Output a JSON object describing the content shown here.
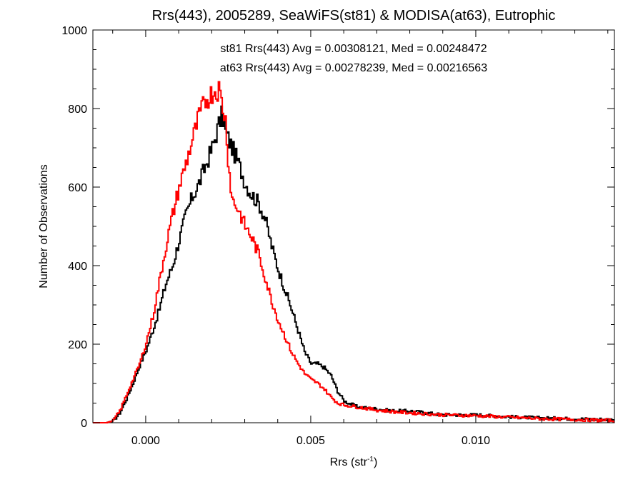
{
  "chart_data": {
    "type": "line",
    "style": "histogram-step",
    "title": "Rrs(443), 2005289, SeaWiFS(st81) & MODISA(at63), Eutrophic",
    "xlabel_base": "Rrs (str",
    "xlabel_sup": "-1",
    "xlabel_close": ")",
    "ylabel": "Number of Observations",
    "xlim": [
      -0.0016,
      0.0142
    ],
    "ylim": [
      0,
      1000
    ],
    "x_ticks": [
      0.0,
      0.005,
      0.01
    ],
    "x_tick_labels": [
      "0.000",
      "0.005",
      "0.010"
    ],
    "y_ticks": [
      0,
      200,
      400,
      600,
      800,
      1000
    ],
    "y_tick_labels": [
      "0",
      "200",
      "400",
      "600",
      "800",
      "1000"
    ],
    "grid": false,
    "series": [
      {
        "name": "st81",
        "color": "#000000",
        "annotation": "st81 Rrs(443) Avg = 0.00308121, Med = 0.00248472",
        "points": [
          [
            -0.0016,
            0
          ],
          [
            -0.0012,
            0
          ],
          [
            -0.001,
            5
          ],
          [
            -0.0008,
            25
          ],
          [
            -0.0006,
            60
          ],
          [
            -0.0004,
            100
          ],
          [
            -0.0002,
            145
          ],
          [
            0.0,
            185
          ],
          [
            0.0002,
            235
          ],
          [
            0.0004,
            290
          ],
          [
            0.0006,
            355
          ],
          [
            0.0008,
            400
          ],
          [
            0.001,
            465
          ],
          [
            0.0012,
            530
          ],
          [
            0.0014,
            575
          ],
          [
            0.0016,
            610
          ],
          [
            0.0018,
            655
          ],
          [
            0.002,
            700
          ],
          [
            0.0022,
            760
          ],
          [
            0.0023,
            785
          ],
          [
            0.0024,
            740
          ],
          [
            0.0026,
            700
          ],
          [
            0.0028,
            660
          ],
          [
            0.003,
            610
          ],
          [
            0.0032,
            580
          ],
          [
            0.0034,
            560
          ],
          [
            0.0036,
            520
          ],
          [
            0.0038,
            450
          ],
          [
            0.004,
            390
          ],
          [
            0.0042,
            340
          ],
          [
            0.0044,
            290
          ],
          [
            0.0046,
            235
          ],
          [
            0.0048,
            180
          ],
          [
            0.005,
            150
          ],
          [
            0.0052,
            150
          ],
          [
            0.0054,
            140
          ],
          [
            0.0056,
            120
          ],
          [
            0.0058,
            80
          ],
          [
            0.006,
            55
          ],
          [
            0.0064,
            40
          ],
          [
            0.007,
            35
          ],
          [
            0.0075,
            30
          ],
          [
            0.008,
            30
          ],
          [
            0.009,
            20
          ],
          [
            0.01,
            20
          ],
          [
            0.011,
            15
          ],
          [
            0.012,
            12
          ],
          [
            0.013,
            10
          ],
          [
            0.0142,
            8
          ]
        ]
      },
      {
        "name": "at63",
        "color": "#ff0000",
        "annotation": "at63 Rrs(443) Avg = 0.00278239, Med = 0.00216563",
        "points": [
          [
            -0.0016,
            0
          ],
          [
            -0.0012,
            0
          ],
          [
            -0.001,
            5
          ],
          [
            -0.0008,
            30
          ],
          [
            -0.0006,
            70
          ],
          [
            -0.0004,
            110
          ],
          [
            -0.0002,
            150
          ],
          [
            0.0,
            205
          ],
          [
            0.0002,
            270
          ],
          [
            0.0004,
            360
          ],
          [
            0.0006,
            450
          ],
          [
            0.0008,
            530
          ],
          [
            0.001,
            600
          ],
          [
            0.0012,
            660
          ],
          [
            0.0014,
            720
          ],
          [
            0.0016,
            780
          ],
          [
            0.0018,
            820
          ],
          [
            0.002,
            840
          ],
          [
            0.0022,
            850
          ],
          [
            0.0024,
            770
          ],
          [
            0.0025,
            650
          ],
          [
            0.0026,
            570
          ],
          [
            0.0028,
            540
          ],
          [
            0.003,
            500
          ],
          [
            0.0032,
            470
          ],
          [
            0.0034,
            430
          ],
          [
            0.0036,
            370
          ],
          [
            0.0038,
            310
          ],
          [
            0.004,
            260
          ],
          [
            0.0042,
            220
          ],
          [
            0.0044,
            180
          ],
          [
            0.0046,
            150
          ],
          [
            0.0048,
            125
          ],
          [
            0.005,
            110
          ],
          [
            0.0052,
            100
          ],
          [
            0.0054,
            85
          ],
          [
            0.0056,
            65
          ],
          [
            0.0058,
            50
          ],
          [
            0.006,
            45
          ],
          [
            0.0064,
            40
          ],
          [
            0.007,
            32
          ],
          [
            0.0075,
            28
          ],
          [
            0.008,
            25
          ],
          [
            0.009,
            20
          ],
          [
            0.01,
            18
          ],
          [
            0.011,
            14
          ],
          [
            0.012,
            10
          ],
          [
            0.013,
            8
          ],
          [
            0.0142,
            5
          ]
        ]
      }
    ]
  }
}
